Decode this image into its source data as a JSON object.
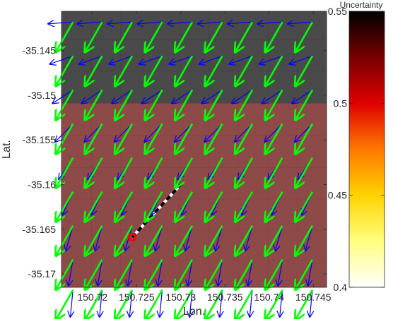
{
  "chart_data": {
    "type": "heatmap",
    "xlabel": "Lon.",
    "ylabel": "Lat.",
    "xlim": [
      150.7165,
      150.7465
    ],
    "ylim": [
      -35.1715,
      -35.1406
    ],
    "x_ticks": [
      {
        "value": 150.72,
        "label": "150.72"
      },
      {
        "value": 150.725,
        "label": "150.725"
      },
      {
        "value": 150.73,
        "label": "150.73"
      },
      {
        "value": 150.735,
        "label": "150.735"
      },
      {
        "value": 150.74,
        "label": "150.74"
      },
      {
        "value": 150.745,
        "label": "150.745"
      }
    ],
    "y_ticks": [
      {
        "value": -35.145,
        "label": "-35.145"
      },
      {
        "value": -35.15,
        "label": "-35.15"
      },
      {
        "value": -35.155,
        "label": "-35.155"
      },
      {
        "value": -35.16,
        "label": "-35.16"
      },
      {
        "value": -35.165,
        "label": "-35.165"
      },
      {
        "value": -35.17,
        "label": "-35.17"
      }
    ],
    "colorbar": {
      "title": "Uncertainty",
      "range": [
        0.4,
        0.55
      ],
      "ticks": [
        {
          "value": 0.4,
          "label": "0.4"
        },
        {
          "value": 0.45,
          "label": "0.45"
        },
        {
          "value": 0.5,
          "label": "0.5"
        },
        {
          "value": 0.55,
          "label": "0.55"
        }
      ],
      "colormap": [
        "#ffffff",
        "#ffff80",
        "#ffd200",
        "#ff7800",
        "#e00000",
        "#780000",
        "#000000"
      ]
    },
    "heatmap": {
      "x_edges": [
        150.7165,
        150.7199,
        150.7232,
        150.7265,
        150.7299,
        150.7332,
        150.7365,
        150.7399,
        150.7432,
        150.7465
      ],
      "y_edges": [
        -35.1406,
        -35.1438,
        -35.1473,
        -35.1509,
        -35.1545,
        -35.1581,
        -35.1616,
        -35.1651,
        -35.1685,
        -35.1715
      ],
      "bands": [
        {
          "rows": [
            0,
            2
          ],
          "description": "dark gray",
          "color": "#4a4a4a"
        },
        {
          "rows": [
            3,
            8
          ],
          "description": "muted red",
          "color": "#8e4a48"
        }
      ]
    },
    "grid_x": [
      150.7178,
      150.7211,
      150.7245,
      150.7279,
      150.7313,
      150.7347,
      150.7381,
      150.7415,
      150.7449
    ],
    "grid_y": [
      -35.1418,
      -35.1456,
      -35.1494,
      -35.1532,
      -35.157,
      -35.1608,
      -35.1646,
      -35.1684,
      -35.1718
    ],
    "series": [
      {
        "name": "",
        "color": "#00ff00",
        "description": "green arrows, uniform direction"
      },
      {
        "name": "",
        "color": "#0000ff",
        "description": "blue arrows, varying direction"
      }
    ],
    "green_vector": {
      "dlon": -0.0019,
      "dlat": -0.0033
    },
    "blue_vector_rows": [
      {
        "dlon": -0.0028,
        "dlat": -0.0002
      },
      {
        "dlon": -0.0026,
        "dlat": -0.0009
      },
      {
        "dlon": -0.0023,
        "dlat": -0.0015
      },
      {
        "dlon": -0.002,
        "dlat": -0.002
      },
      {
        "dlon": -0.0016,
        "dlat": -0.0024
      },
      {
        "dlon": -0.0012,
        "dlat": -0.0026
      },
      {
        "dlon": -0.0008,
        "dlat": -0.0028
      },
      {
        "dlon": -0.0005,
        "dlat": -0.0029
      },
      {
        "dlon": -0.0003,
        "dlat": -0.003
      }
    ],
    "track": {
      "start": {
        "lon": 150.7245,
        "lat": -35.1659
      },
      "end": {
        "lon": 150.73,
        "lat": -35.16
      },
      "color": "#000000",
      "style": "dashed black/white"
    },
    "marker": {
      "lon": 150.7245,
      "lat": -35.1659,
      "color": "#ff0000"
    }
  }
}
